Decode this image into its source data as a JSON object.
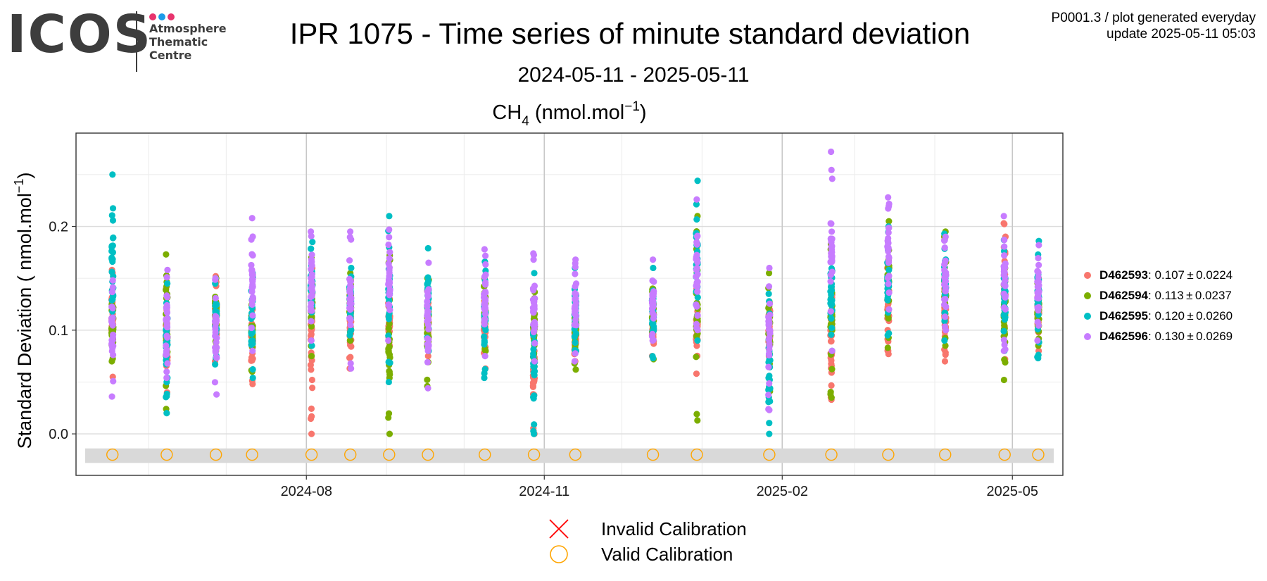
{
  "logo": {
    "text": "ICOS",
    "subtitle_lines": [
      "Atmosphere",
      "Thematic",
      "Centre"
    ],
    "dot_colors": [
      "#e8336d",
      "#1d9be9",
      "#e8336d"
    ]
  },
  "header": {
    "title": "IPR 1075 - Time series of minute standard deviation",
    "subtitle": "2024-05-11 - 2025-05-11",
    "meta_line1": "P0001.3 / plot generated everyday",
    "meta_line2": "update  2025-05-11 05:03"
  },
  "chart_data": {
    "type": "scatter",
    "title_main": "CH",
    "title_sub": "4",
    "title_unit": " (nmol.mol",
    "title_sup": "−1",
    "title_end": ")",
    "ylabel_main": "Standard Deviation ( nmol.mol",
    "ylabel_sup": "−1",
    "ylabel_end": ")",
    "x_range": [
      "2024-05-11",
      "2025-05-11"
    ],
    "y_range": [
      -0.04,
      0.29
    ],
    "x_ticks": [
      "2024-08-01",
      "2024-11-01",
      "2025-02-01",
      "2025-05-01"
    ],
    "x_tick_labels": [
      "2024-08",
      "2024-11",
      "2025-02",
      "2025-05"
    ],
    "y_ticks": [
      0.0,
      0.1,
      0.2
    ],
    "y_tick_labels": [
      "0.0",
      "0.1",
      "0.2"
    ],
    "grid": true,
    "legend_position": "right",
    "series": [
      {
        "id": "D462593",
        "stats": ": 0.107 ± 0.0224",
        "color": "#f8766d"
      },
      {
        "id": "D462594",
        "stats": ": 0.113 ± 0.0237",
        "color": "#7cae00"
      },
      {
        "id": "D462595",
        "stats": ": 0.120 ± 0.0260",
        "color": "#00bfc4"
      },
      {
        "id": "D462596",
        "stats": ": 0.130 ± 0.0269",
        "color": "#c77cff"
      }
    ],
    "sessions": [
      {
        "date": "2024-05-18",
        "ranges": [
          [
            0.055,
            0.158
          ],
          [
            0.07,
            0.125
          ],
          [
            0.085,
            0.25
          ],
          [
            0.036,
            0.148
          ]
        ]
      },
      {
        "date": "2024-06-08",
        "ranges": [
          [
            0.04,
            0.14
          ],
          [
            0.024,
            0.173
          ],
          [
            0.02,
            0.145
          ],
          [
            0.054,
            0.158
          ]
        ]
      },
      {
        "date": "2024-06-27",
        "ranges": [
          [
            0.07,
            0.152
          ],
          [
            0.08,
            0.15
          ],
          [
            0.067,
            0.15
          ],
          [
            0.038,
            0.15
          ]
        ]
      },
      {
        "date": "2024-07-11",
        "ranges": [
          [
            0.048,
            0.12
          ],
          [
            0.06,
            0.13
          ],
          [
            0.054,
            0.155
          ],
          [
            0.08,
            0.208
          ]
        ]
      },
      {
        "date": "2024-08-03",
        "ranges": [
          [
            0.0,
            0.16
          ],
          [
            0.075,
            0.17
          ],
          [
            0.085,
            0.185
          ],
          [
            0.09,
            0.195
          ]
        ]
      },
      {
        "date": "2024-08-18",
        "ranges": [
          [
            0.063,
            0.14
          ],
          [
            0.09,
            0.155
          ],
          [
            0.095,
            0.16
          ],
          [
            0.063,
            0.195
          ]
        ]
      },
      {
        "date": "2024-09-02",
        "ranges": [
          [
            0.085,
            0.13
          ],
          [
            0.0,
            0.172
          ],
          [
            0.05,
            0.21
          ],
          [
            0.09,
            0.197
          ]
        ]
      },
      {
        "date": "2024-09-17",
        "ranges": [
          [
            0.075,
            0.14
          ],
          [
            0.046,
            0.15
          ],
          [
            0.08,
            0.179
          ],
          [
            0.044,
            0.165
          ]
        ]
      },
      {
        "date": "2024-10-09",
        "ranges": [
          [
            0.063,
            0.13
          ],
          [
            0.08,
            0.15
          ],
          [
            0.054,
            0.166
          ],
          [
            0.075,
            0.178
          ]
        ]
      },
      {
        "date": "2024-10-28",
        "ranges": [
          [
            0.0,
            0.11
          ],
          [
            0.065,
            0.14
          ],
          [
            0.0,
            0.155
          ],
          [
            0.07,
            0.174
          ]
        ]
      },
      {
        "date": "2024-11-13",
        "ranges": [
          [
            0.07,
            0.11
          ],
          [
            0.062,
            0.13
          ],
          [
            0.08,
            0.16
          ],
          [
            0.07,
            0.168
          ]
        ]
      },
      {
        "date": "2024-12-13",
        "ranges": [
          [
            0.075,
            0.12
          ],
          [
            0.072,
            0.14
          ],
          [
            0.073,
            0.16
          ],
          [
            0.09,
            0.168
          ]
        ]
      },
      {
        "date": "2024-12-30",
        "ranges": [
          [
            0.058,
            0.14
          ],
          [
            0.013,
            0.21
          ],
          [
            0.09,
            0.244
          ],
          [
            0.1,
            0.226
          ]
        ]
      },
      {
        "date": "2025-01-27",
        "ranges": [
          [
            0.075,
            0.12
          ],
          [
            0.032,
            0.155
          ],
          [
            0.0,
            0.135
          ],
          [
            0.023,
            0.16
          ]
        ]
      },
      {
        "date": "2025-02-20",
        "ranges": [
          [
            0.033,
            0.14
          ],
          [
            0.035,
            0.183
          ],
          [
            0.08,
            0.17
          ],
          [
            0.08,
            0.272
          ]
        ]
      },
      {
        "date": "2025-03-14",
        "ranges": [
          [
            0.077,
            0.16
          ],
          [
            0.083,
            0.205
          ],
          [
            0.095,
            0.2
          ],
          [
            0.12,
            0.228
          ]
        ]
      },
      {
        "date": "2025-04-05",
        "ranges": [
          [
            0.07,
            0.14
          ],
          [
            0.085,
            0.195
          ],
          [
            0.09,
            0.193
          ],
          [
            0.1,
            0.19
          ]
        ]
      },
      {
        "date": "2025-04-28",
        "ranges": [
          [
            0.072,
            0.203
          ],
          [
            0.052,
            0.16
          ],
          [
            0.08,
            0.187
          ],
          [
            0.08,
            0.21
          ]
        ]
      },
      {
        "date": "2025-05-11",
        "ranges": [
          [
            0.08,
            0.15
          ],
          [
            0.085,
            0.15
          ],
          [
            0.073,
            0.186
          ],
          [
            0.09,
            0.182
          ]
        ]
      }
    ],
    "calibration_value": -0.02,
    "calibration_band": [
      -0.028,
      -0.014
    ],
    "calibration_color": "#ffa500",
    "band_color": "#d9d9d9",
    "calibration_legend": [
      {
        "label": "Invalid Calibration",
        "symbol": "cross",
        "color": "#ff0000"
      },
      {
        "label": "Valid Calibration",
        "symbol": "circle",
        "color": "#ffa500"
      }
    ]
  }
}
